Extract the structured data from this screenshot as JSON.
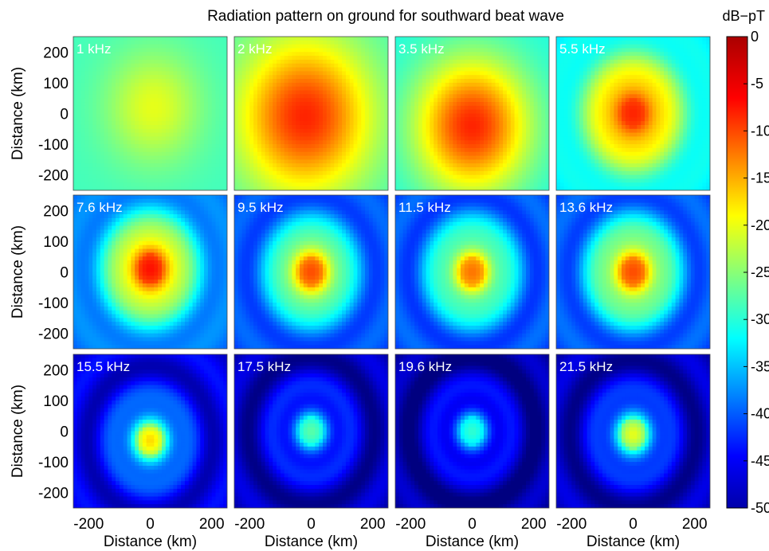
{
  "chart_data": {
    "type": "heatmap",
    "title": "Radiation pattern on ground for southward beat wave",
    "xlabel": "Distance (km)",
    "ylabel": "Distance (km)",
    "xlim": [
      -250,
      250
    ],
    "ylim": [
      -250,
      250
    ],
    "x_ticks": [
      "-200",
      "0",
      "200"
    ],
    "y_ticks": [
      "200",
      "100",
      "0",
      "-100",
      "-200"
    ],
    "colorbar": {
      "label": "dB−pT",
      "range": [
        -50,
        0
      ],
      "ticks": [
        "0",
        "-5",
        "-10",
        "-15",
        "-20",
        "-25",
        "-30",
        "-35",
        "-40",
        "-45",
        "-50"
      ],
      "colormap": "jet"
    },
    "panels": [
      {
        "label": "1 kHz",
        "bg": -28,
        "peak": -20,
        "rings": 0,
        "spread": 110,
        "cx": 10,
        "cy": 20
      },
      {
        "label": "2 kHz",
        "bg": -28,
        "peak": -8,
        "rings": 0,
        "spread": 150,
        "cx": -20,
        "cy": -10
      },
      {
        "label": "3.5 kHz",
        "bg": -30,
        "peak": -8,
        "rings": 0,
        "spread": 130,
        "cx": 0,
        "cy": -40
      },
      {
        "label": "5.5 kHz",
        "bg": -32,
        "peak": -8,
        "rings": 0.4,
        "spread": 100,
        "cx": 0,
        "cy": 0
      },
      {
        "label": "7.6 kHz",
        "bg": -38,
        "peak": -7,
        "rings": 0.6,
        "spread": 90,
        "cx": 0,
        "cy": 10
      },
      {
        "label": "9.5 kHz",
        "bg": -40,
        "peak": -10,
        "rings": 0.7,
        "spread": 80,
        "cx": 0,
        "cy": 0
      },
      {
        "label": "11.5 kHz",
        "bg": -40,
        "peak": -12,
        "rings": 0.8,
        "spread": 80,
        "cx": 0,
        "cy": 0
      },
      {
        "label": "13.6 kHz",
        "bg": -40,
        "peak": -10,
        "rings": 0.8,
        "spread": 85,
        "cx": 0,
        "cy": 0
      },
      {
        "label": "15.5 kHz",
        "bg": -45,
        "peak": -17,
        "rings": 1.0,
        "spread": 60,
        "cx": 0,
        "cy": -30
      },
      {
        "label": "17.5 kHz",
        "bg": -47,
        "peak": -27,
        "rings": 1.0,
        "spread": 60,
        "cx": 0,
        "cy": 0
      },
      {
        "label": "19.6 kHz",
        "bg": -48,
        "peak": -29,
        "rings": 1.0,
        "spread": 60,
        "cx": 0,
        "cy": 0
      },
      {
        "label": "21.5 kHz",
        "bg": -47,
        "peak": -20,
        "rings": 1.0,
        "spread": 60,
        "cx": 0,
        "cy": -10
      }
    ]
  }
}
